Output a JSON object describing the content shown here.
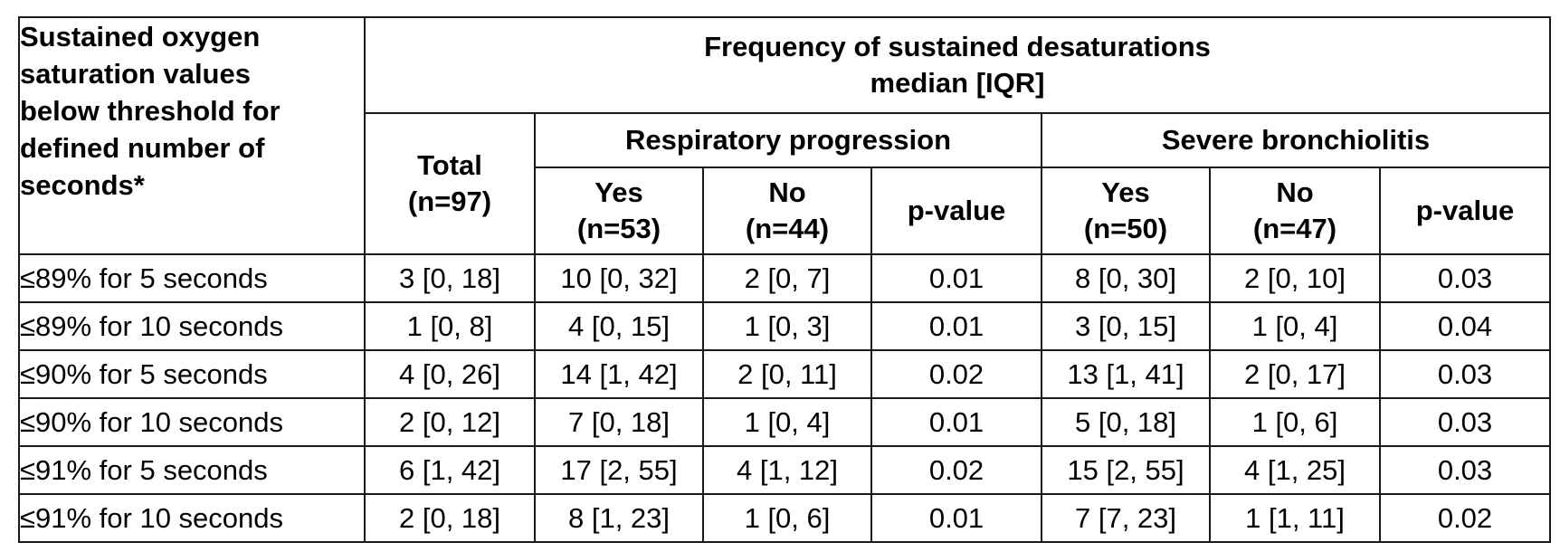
{
  "table": {
    "row_header": "Sustained oxygen saturation values below threshold for defined number of seconds*",
    "row_header_lines": [
      "Sustained oxygen",
      "saturation values",
      "below threshold for",
      "defined number of",
      "seconds*"
    ],
    "group_title_line1": "Frequency of sustained desaturations",
    "group_title_line2": "median [IQR]",
    "subgroups": [
      "Respiratory progression",
      "Severe bronchiolitis"
    ],
    "columns": [
      {
        "label": "Total",
        "n": "(n=97)"
      },
      {
        "label": "Yes",
        "n": "(n=53)"
      },
      {
        "label": "No",
        "n": "(n=44)"
      },
      {
        "label": "p-value",
        "n": ""
      },
      {
        "label": "Yes",
        "n": "(n=50)"
      },
      {
        "label": "No",
        "n": "(n=47)"
      },
      {
        "label": "p-value",
        "n": ""
      }
    ],
    "rows": [
      {
        "label": "≤89% for 5 seconds",
        "cells": [
          "3 [0, 18]",
          "10 [0, 32]",
          "2 [0, 7]",
          "0.01",
          "8 [0, 30]",
          "2 [0, 10]",
          "0.03"
        ]
      },
      {
        "label": "≤89% for 10 seconds",
        "cells": [
          "1 [0, 8]",
          "4 [0, 15]",
          "1 [0, 3]",
          "0.01",
          "3 [0, 15]",
          "1 [0, 4]",
          "0.04"
        ]
      },
      {
        "label": "≤90% for 5 seconds",
        "cells": [
          "4 [0, 26]",
          "14 [1, 42]",
          "2 [0, 11]",
          "0.02",
          "13 [1, 41]",
          "2 [0, 17]",
          "0.03"
        ]
      },
      {
        "label": "≤90% for 10 seconds",
        "cells": [
          "2 [0, 12]",
          "7 [0, 18]",
          "1 [0, 4]",
          "0.01",
          "5 [0, 18]",
          "1 [0, 6]",
          "0.03"
        ]
      },
      {
        "label": "≤91% for 5 seconds",
        "cells": [
          "6 [1, 42]",
          "17 [2, 55]",
          "4 [1, 12]",
          "0.02",
          "15 [2, 55]",
          "4 [1, 25]",
          "0.03"
        ]
      },
      {
        "label": "≤91% for 10 seconds",
        "cells": [
          "2 [0, 18]",
          "8 [1, 23]",
          "1 [0, 6]",
          "0.01",
          "7 [7, 23]",
          "1 [1, 11]",
          "0.02"
        ]
      }
    ]
  }
}
